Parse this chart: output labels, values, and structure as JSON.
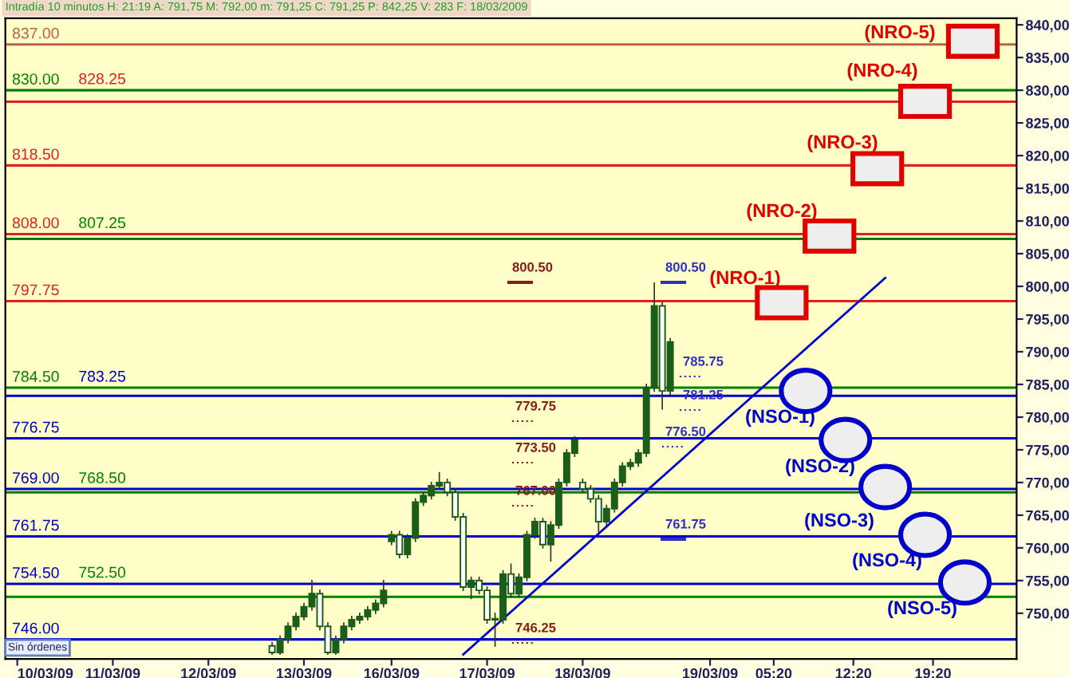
{
  "chart_data": {
    "type": "candlestick",
    "title": "Intradía 10 minutos H: 21:19 A: 791,75 M: 792,00 m: 791,25 C: 791,25 P: 842,25 V: 283 F: 18/03/2009",
    "categories": [
      null,
      "10/03/09",
      null,
      null,
      null,
      null,
      null,
      null,
      null,
      null,
      null,
      null,
      null,
      "11/03/09",
      null,
      null,
      null,
      null,
      null,
      null,
      null,
      null,
      null,
      null,
      null,
      "12/03/09",
      null,
      null,
      null,
      null,
      null,
      null,
      null,
      null,
      null,
      null,
      null,
      "13/03/09",
      null,
      null,
      null,
      null,
      null,
      null,
      null,
      null,
      null,
      null,
      "16/03/09",
      null,
      null,
      null,
      null,
      null,
      null,
      null,
      null,
      null,
      null,
      null,
      "17/03/09",
      null,
      null,
      null,
      null,
      null,
      null,
      null,
      null,
      null,
      null,
      null,
      "18/03/09",
      null,
      null,
      null,
      null,
      null,
      null,
      null,
      null,
      null,
      null,
      null,
      null,
      null,
      null,
      null,
      "19/03/09",
      null,
      null,
      null,
      null,
      null,
      null,
      null,
      "05:20",
      null,
      null,
      null,
      null,
      null,
      null,
      null,
      null,
      null,
      "12:20",
      null,
      null,
      null,
      null,
      null,
      null,
      null,
      null,
      null,
      "19:20",
      null,
      null,
      null,
      null,
      null,
      null,
      null,
      null,
      null,
      null
    ],
    "ylim": [
      743,
      841
    ],
    "yticks": [
      {
        "value": 750,
        "label": "750,00"
      },
      {
        "value": 755,
        "label": "755,00"
      },
      {
        "value": 760,
        "label": "760,00"
      },
      {
        "value": 765,
        "label": "765,00"
      },
      {
        "value": 770,
        "label": "770,00"
      },
      {
        "value": 775,
        "label": "775,00"
      },
      {
        "value": 780,
        "label": "780,00"
      },
      {
        "value": 785,
        "label": "785,00"
      },
      {
        "value": 790,
        "label": "790,00"
      },
      {
        "value": 795,
        "label": "795,00"
      },
      {
        "value": 800,
        "label": "800,00"
      },
      {
        "value": 805,
        "label": "805,00"
      },
      {
        "value": 810,
        "label": "810,00"
      },
      {
        "value": 815,
        "label": "815,00"
      },
      {
        "value": 820,
        "label": "820,00"
      },
      {
        "value": 825,
        "label": "825,00"
      },
      {
        "value": 830,
        "label": "830,00"
      },
      {
        "value": 835,
        "label": "835,00"
      },
      {
        "value": 840,
        "label": "840,00"
      }
    ],
    "series": [
      {
        "color": "#1a5e1a",
        "ohlc": [
          null,
          null,
          null,
          null,
          null,
          null,
          null,
          null,
          null,
          null,
          null,
          null,
          null,
          null,
          null,
          null,
          null,
          null,
          null,
          null,
          null,
          null,
          null,
          null,
          null,
          null,
          null,
          null,
          null,
          null,
          null,
          null,
          null,
          [
            745,
            745.5,
            743.75,
            744
          ],
          [
            744,
            746.5,
            743.75,
            746
          ],
          [
            746,
            748.5,
            745.5,
            748
          ],
          [
            748,
            750,
            747.5,
            749.5
          ],
          [
            749.5,
            751.5,
            749,
            751
          ],
          [
            751,
            755,
            750.5,
            753
          ],
          [
            753,
            753.5,
            747.5,
            748
          ],
          [
            748,
            748.5,
            743.75,
            744
          ],
          [
            744,
            746.5,
            743.75,
            746
          ],
          [
            746,
            748.5,
            745.5,
            748
          ],
          [
            748,
            749.5,
            747.5,
            749
          ],
          [
            749,
            750,
            748.5,
            749.5
          ],
          [
            749.5,
            751,
            749,
            750.5
          ],
          [
            750.5,
            752,
            750,
            751.5
          ],
          [
            751.5,
            755,
            751,
            753.5
          ],
          [
            761,
            762.5,
            760.5,
            762
          ],
          [
            762,
            762.5,
            758.5,
            759
          ],
          [
            759,
            762,
            758.5,
            761.5
          ],
          [
            761.5,
            767.5,
            761,
            767
          ],
          [
            767,
            768.5,
            766.5,
            768
          ],
          [
            768,
            770,
            767.5,
            769.5
          ],
          [
            769.5,
            771.5,
            769,
            770
          ],
          [
            770,
            770.5,
            768,
            768.5
          ],
          [
            768.5,
            769,
            764.25,
            764.75
          ],
          [
            764.75,
            765.25,
            753.5,
            754
          ],
          [
            754,
            755.5,
            752.25,
            755
          ],
          [
            755,
            755.5,
            753,
            753.5
          ],
          [
            753.5,
            754,
            748.5,
            749
          ],
          [
            749,
            750,
            745,
            749
          ],
          [
            749,
            756.5,
            748.5,
            756
          ],
          [
            756,
            757.5,
            752.5,
            753
          ],
          [
            753,
            756,
            752.5,
            755.5
          ],
          [
            755.5,
            762.5,
            755,
            762
          ],
          [
            762,
            764.5,
            761.5,
            764
          ],
          [
            764,
            764.5,
            760,
            760.5
          ],
          [
            760.5,
            764,
            758,
            763.5
          ],
          [
            763.5,
            770.5,
            763,
            770
          ],
          [
            770,
            775,
            769.5,
            774.5
          ],
          [
            774.5,
            777,
            774,
            776.5
          ],
          [
            770,
            770.5,
            768.5,
            769
          ],
          [
            769,
            769.5,
            767,
            767.5
          ],
          [
            767.5,
            768,
            762.5,
            764
          ],
          [
            764,
            766.5,
            763.5,
            766
          ],
          [
            766,
            770.5,
            765.5,
            770
          ],
          [
            770,
            773,
            769.5,
            772.5
          ],
          [
            772.5,
            773.5,
            772,
            773
          ],
          [
            773,
            775,
            772.5,
            774.5
          ],
          [
            774.5,
            785,
            774,
            784.5
          ],
          [
            784.5,
            800.5,
            784,
            797
          ],
          [
            797,
            797.5,
            781.25,
            784
          ],
          [
            784,
            792,
            783.5,
            791.5
          ],
          null,
          null,
          null,
          null,
          null,
          null,
          null,
          null,
          null,
          null,
          null,
          null,
          null,
          null,
          null,
          null,
          null,
          null,
          null,
          null,
          null,
          null,
          null,
          null,
          null,
          null,
          null,
          null,
          null,
          null,
          null,
          null,
          null,
          null,
          null,
          null,
          null,
          null,
          null,
          null,
          null,
          null,
          null
        ]
      },
      {
        "type": "line",
        "color": "#0000cc",
        "values": [
          null,
          null,
          null,
          null,
          null,
          null,
          null,
          null,
          null,
          null,
          null,
          null,
          null,
          null,
          null,
          null,
          null,
          null,
          null,
          null,
          null,
          null,
          null,
          null,
          null,
          null,
          null,
          null,
          null,
          null,
          null,
          null,
          null,
          null,
          null,
          null,
          null,
          null,
          null,
          null,
          null,
          null,
          null,
          null,
          null,
          null,
          null,
          null,
          null,
          null,
          null,
          null,
          null,
          null,
          null,
          null,
          null,
          743.7,
          null,
          null,
          null,
          null,
          null,
          null,
          null,
          null,
          null,
          null,
          null,
          null,
          null,
          null,
          null,
          null,
          null,
          null,
          null,
          null,
          null,
          null,
          null,
          null,
          null,
          null,
          null,
          null,
          null,
          null,
          null,
          null,
          null,
          null,
          null,
          null,
          null,
          null,
          null,
          null,
          null,
          null,
          null,
          null,
          null,
          null,
          null,
          null,
          null,
          null,
          null,
          null,
          801.3,
          null,
          null,
          null,
          null,
          null,
          null,
          null,
          null,
          null,
          null,
          null,
          null,
          null,
          null,
          null,
          null
        ]
      },
      {
        "type": "scatter",
        "marker": "square",
        "color": "#e00000",
        "values": [
          null,
          null,
          null,
          null,
          null,
          null,
          null,
          null,
          null,
          null,
          null,
          null,
          null,
          null,
          null,
          null,
          null,
          null,
          null,
          null,
          null,
          null,
          null,
          null,
          null,
          null,
          null,
          null,
          null,
          null,
          null,
          null,
          null,
          null,
          null,
          null,
          null,
          null,
          null,
          null,
          null,
          null,
          null,
          null,
          null,
          null,
          null,
          null,
          null,
          null,
          null,
          null,
          null,
          null,
          null,
          null,
          null,
          null,
          null,
          null,
          null,
          null,
          null,
          null,
          null,
          null,
          null,
          null,
          null,
          null,
          null,
          null,
          null,
          null,
          null,
          null,
          null,
          null,
          null,
          null,
          null,
          null,
          null,
          null,
          null,
          null,
          null,
          null,
          null,
          null,
          null,
          null,
          null,
          null,
          null,
          null,
          null,
          797.5,
          null,
          null,
          null,
          null,
          null,
          807.7,
          null,
          null,
          null,
          null,
          null,
          818,
          null,
          null,
          null,
          null,
          null,
          828.3,
          null,
          null,
          null,
          null,
          null,
          837.5,
          null,
          null,
          null,
          null,
          null
        ]
      },
      {
        "type": "scatter",
        "marker": "circle",
        "color": "#0000cc",
        "values": [
          null,
          null,
          null,
          null,
          null,
          null,
          null,
          null,
          null,
          null,
          null,
          null,
          null,
          null,
          null,
          null,
          null,
          null,
          null,
          null,
          null,
          null,
          null,
          null,
          null,
          null,
          null,
          null,
          null,
          null,
          null,
          null,
          null,
          null,
          null,
          null,
          null,
          null,
          null,
          null,
          null,
          null,
          null,
          null,
          null,
          null,
          null,
          null,
          null,
          null,
          null,
          null,
          null,
          null,
          null,
          null,
          null,
          null,
          null,
          null,
          null,
          null,
          null,
          null,
          null,
          null,
          null,
          null,
          null,
          null,
          null,
          null,
          null,
          null,
          null,
          null,
          null,
          null,
          null,
          null,
          null,
          null,
          null,
          null,
          null,
          null,
          null,
          null,
          null,
          null,
          null,
          null,
          null,
          null,
          null,
          null,
          null,
          null,
          null,
          null,
          784,
          null,
          null,
          null,
          null,
          776.5,
          null,
          null,
          null,
          null,
          769.3,
          null,
          null,
          null,
          null,
          762,
          null,
          null,
          null,
          null,
          754.7,
          null,
          null,
          null,
          null,
          null,
          null
        ]
      }
    ],
    "ref_lines": [
      {
        "axis": "y",
        "value": 837,
        "label": "837.00",
        "color": "#c0604a"
      },
      {
        "axis": "y",
        "value": 830,
        "label": "830.00",
        "color": "#008000"
      },
      {
        "axis": "y",
        "value": 828.25,
        "label": "828.25",
        "color": "#e02020"
      },
      {
        "axis": "y",
        "value": 818.5,
        "label": "818.50",
        "color": "#e02020"
      },
      {
        "axis": "y",
        "value": 808,
        "label": "808.00",
        "color": "#e02020"
      },
      {
        "axis": "y",
        "value": 807.25,
        "label": "807.25",
        "color": "#008000"
      },
      {
        "axis": "y",
        "value": 797.75,
        "label": "797.75",
        "color": "#e02020"
      },
      {
        "axis": "y",
        "value": 784.5,
        "label": "784.50",
        "color": "#008000"
      },
      {
        "axis": "y",
        "value": 783.25,
        "label": "783.25",
        "color": "#0000cc"
      },
      {
        "axis": "y",
        "value": 776.75,
        "label": "776.75",
        "color": "#0000cc"
      },
      {
        "axis": "y",
        "value": 769,
        "label": "769.00",
        "color": "#0000cc"
      },
      {
        "axis": "y",
        "value": 768.5,
        "label": "768.50",
        "color": "#008000"
      },
      {
        "axis": "y",
        "value": 761.75,
        "label": "761.75",
        "color": "#0000cc"
      },
      {
        "axis": "y",
        "value": 754.5,
        "label": "754.50",
        "color": "#0000cc"
      },
      {
        "axis": "y",
        "value": 752.5,
        "label": "752.50",
        "color": "#008000"
      },
      {
        "axis": "y",
        "value": 746,
        "label": "746.00",
        "color": "#0000cc"
      }
    ],
    "annotations": [
      "800.50",
      "779.75",
      "773.50",
      "767.00",
      "746.25",
      "800.50",
      "785.75",
      "781.25",
      "776.50",
      "761.75",
      "(NRO-1)",
      "(NRO-2)",
      "(NRO-3)",
      "(NRO-4)",
      "(NRO-5)",
      "(NSO-1)",
      "(NSO-2)",
      "(NSO-3)",
      "(NSO-4)",
      "(NSO-5)",
      "Sin órdenes"
    ]
  }
}
